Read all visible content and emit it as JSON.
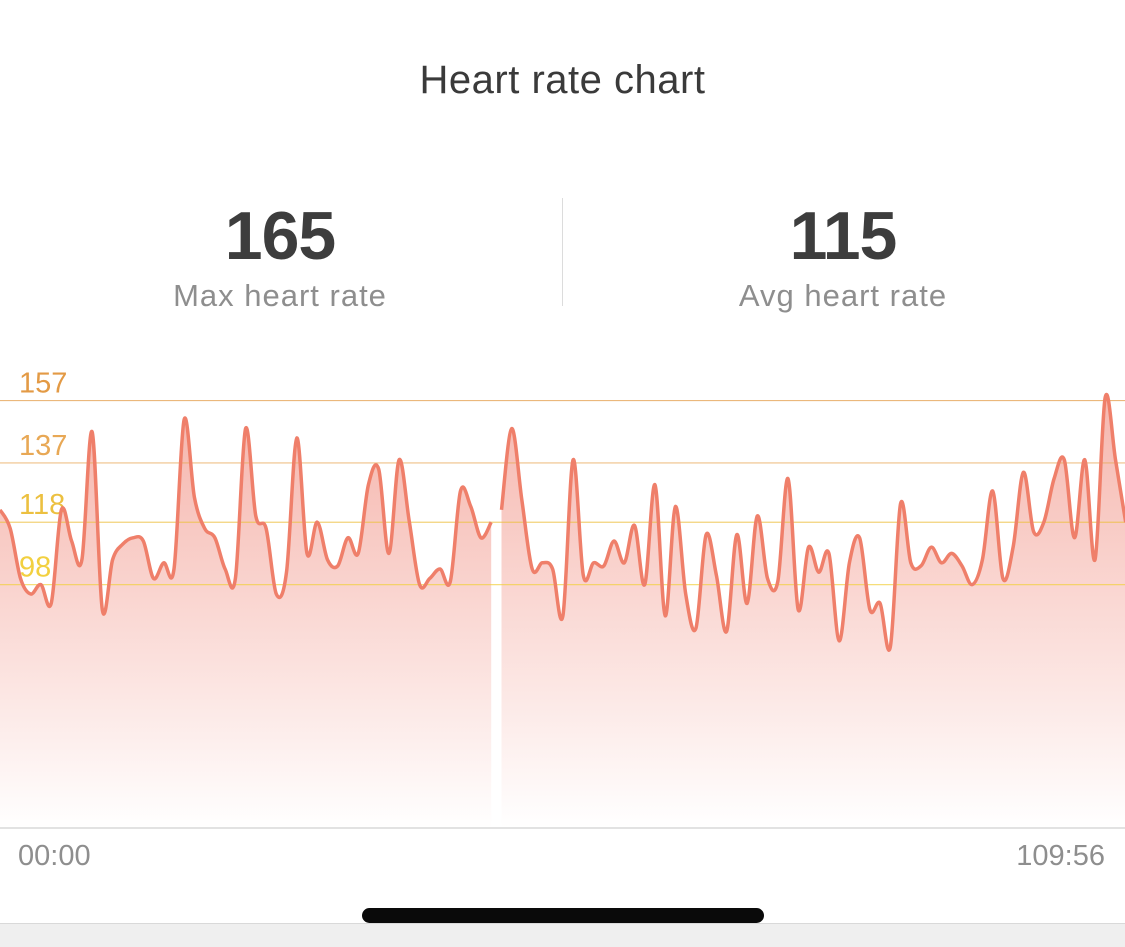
{
  "header": {
    "title": "Heart rate chart"
  },
  "stats": {
    "max": {
      "value": "165",
      "label": "Max heart rate"
    },
    "avg": {
      "value": "115",
      "label": "Avg heart rate"
    }
  },
  "colors": {
    "line": "#ef7f6a",
    "fill_top": "#f4aaa0",
    "zone_157": "#e39a45",
    "zone_137": "#e8a855",
    "zone_118": "#ecc040",
    "zone_98": "#f2d040"
  },
  "chart_data": {
    "type": "area",
    "x_start_label": "00:00",
    "x_end_label": "109:56",
    "duration_minutes": 109.93,
    "ylim": [
      20,
      170
    ],
    "zones": [
      {
        "label": "157",
        "value": 157
      },
      {
        "label": "137",
        "value": 137
      },
      {
        "label": "118",
        "value": 118
      },
      {
        "label": "98",
        "value": 98
      }
    ],
    "segments": [
      {
        "x": [
          0,
          1,
          2,
          3,
          4,
          5,
          6,
          7,
          8,
          9,
          10,
          11,
          12,
          13,
          14,
          15,
          16,
          17,
          18,
          19,
          20,
          21,
          22,
          23,
          24,
          25,
          26,
          27,
          28,
          29,
          30,
          31,
          32,
          33,
          34,
          35,
          36,
          37,
          38,
          39,
          40,
          41,
          42,
          43,
          44,
          45,
          46,
          47,
          48
        ],
        "y": [
          122,
          116,
          100,
          95,
          98,
          92,
          122,
          112,
          106,
          147,
          90,
          106,
          111,
          113,
          112,
          100,
          105,
          103,
          151,
          126,
          116,
          113,
          103,
          100,
          148,
          120,
          116,
          95,
          102,
          145,
          108,
          118,
          106,
          104,
          113,
          108,
          130,
          135,
          108,
          138,
          118,
          98,
          100,
          103,
          99,
          128,
          123,
          113,
          118
        ]
      },
      {
        "x": [
          49,
          50,
          51,
          52,
          53,
          54,
          55,
          56,
          57,
          58,
          59,
          60,
          61,
          62,
          63,
          64,
          65,
          66,
          67,
          68,
          69,
          70,
          71,
          72,
          73,
          74,
          75,
          76,
          77,
          78,
          79,
          80,
          81,
          82,
          83,
          84,
          85,
          86,
          87,
          88,
          89,
          90,
          91,
          92,
          93,
          94,
          95,
          96,
          97,
          98,
          99,
          100,
          101,
          102,
          103,
          104,
          105,
          106,
          107,
          108,
          109,
          110
        ],
        "y": [
          122,
          148,
          125,
          103,
          105,
          103,
          88,
          138,
          101,
          105,
          104,
          112,
          105,
          117,
          98,
          130,
          88,
          123,
          95,
          84,
          114,
          101,
          83,
          114,
          92,
          120,
          100,
          99,
          132,
          90,
          110,
          102,
          108,
          80,
          105,
          113,
          90,
          92,
          78,
          124,
          105,
          104,
          110,
          105,
          108,
          104,
          98,
          106,
          128,
          100,
          110,
          134,
          115,
          118,
          132,
          138,
          113,
          138,
          106,
          158,
          138,
          118
        ]
      }
    ]
  }
}
